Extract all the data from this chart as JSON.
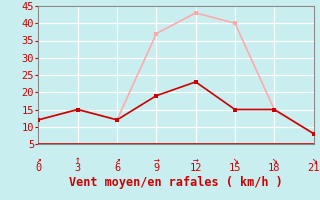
{
  "xlabel": "Vent moyen/en rafales ( km/h )",
  "bg_color": "#c8eef0",
  "grid_color": "#ffffff",
  "x_ticks": [
    0,
    3,
    6,
    9,
    12,
    15,
    18,
    21
  ],
  "y_ticks": [
    5,
    10,
    15,
    20,
    25,
    30,
    35,
    40,
    45
  ],
  "xlim": [
    0,
    21
  ],
  "ylim": [
    5,
    45
  ],
  "line1_x": [
    0,
    3,
    6,
    9,
    12,
    15,
    18,
    21
  ],
  "line1_y": [
    12,
    15,
    12,
    37,
    43,
    40,
    15,
    8
  ],
  "line1_color": "#ffaaaa",
  "line2_x": [
    0,
    3,
    6,
    9,
    12,
    15,
    18,
    21
  ],
  "line2_y": [
    12,
    15,
    12,
    19,
    23,
    15,
    15,
    8
  ],
  "line2_color": "#cc0000",
  "arrow_symbols": [
    "↗",
    "↑",
    "↗",
    "→",
    "→",
    "↘",
    "↘",
    "↘"
  ],
  "tick_color": "#cc0000",
  "xlabel_color": "#cc0000",
  "spine_color": "#888888",
  "hline_color": "#cc0000",
  "line_width": 1.2,
  "marker_size": 2.5,
  "tick_fontsize": 7.5,
  "xlabel_fontsize": 8.5,
  "arrow_fontsize": 7
}
